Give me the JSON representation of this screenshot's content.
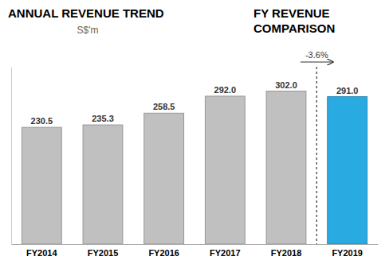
{
  "chart_data": {
    "type": "bar",
    "title": "ANNUAL REVENUE TREND",
    "subtitle": "S$'m",
    "annotations": [
      "FY REVENUE",
      "COMPARISON",
      "-3.6%"
    ],
    "categories": [
      "FY2014",
      "FY2015",
      "FY2016",
      "FY2017",
      "FY2018",
      "FY2019"
    ],
    "values": [
      230.5,
      235.3,
      258.5,
      292.0,
      302.0,
      291.0
    ],
    "value_labels": [
      "230.5",
      "235.3",
      "258.5",
      "292.0",
      "302.0",
      "291.0"
    ],
    "data_labels": true,
    "colors": [
      "#c0c0c0",
      "#c0c0c0",
      "#c0c0c0",
      "#c0c0c0",
      "#c0c0c0",
      "#29abe2"
    ],
    "ylim": [
      0,
      350
    ],
    "grid": false,
    "tick_labels": "x"
  }
}
